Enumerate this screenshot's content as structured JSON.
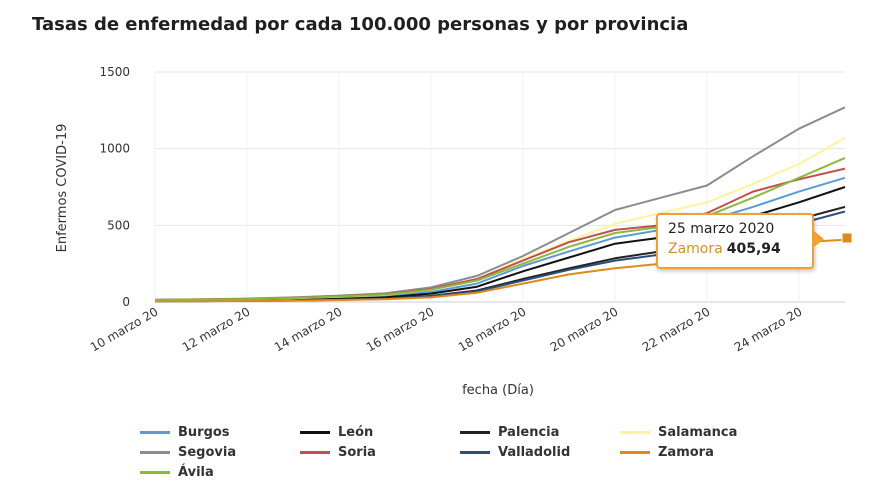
{
  "chart_data": {
    "type": "line",
    "title": "Tasas de enfermedad por cada 100.000 personas y por provincia",
    "xlabel": "fecha (Día)",
    "ylabel": "Enfermos COVID-19",
    "ylim": [
      0,
      1500
    ],
    "yticks": [
      0,
      500,
      1000,
      1500
    ],
    "x": [
      "10 marzo 20",
      "11 marzo 20",
      "12 marzo 20",
      "13 marzo 20",
      "14 marzo 20",
      "15 marzo 20",
      "16 marzo 20",
      "17 marzo 20",
      "18 marzo 20",
      "19 marzo 20",
      "20 marzo 20",
      "21 marzo 20",
      "22 marzo 20",
      "23 marzo 20",
      "24 marzo 20",
      "25 marzo 20"
    ],
    "xtick_labels": [
      "10 marzo 20",
      "12 marzo 20",
      "14 marzo 20",
      "16 marzo 20",
      "18 marzo 20",
      "20 marzo 20",
      "22 marzo 20",
      "24 marzo 20"
    ],
    "grid": true,
    "legend_position": "bottom",
    "series": [
      {
        "name": "Burgos",
        "color": "#5b9bd5",
        "values": [
          10,
          12,
          16,
          22,
          30,
          40,
          65,
          120,
          235,
          330,
          420,
          470,
          530,
          620,
          720,
          810
        ]
      },
      {
        "name": "León",
        "color": "#111111",
        "values": [
          6,
          8,
          10,
          14,
          20,
          30,
          55,
          100,
          200,
          290,
          380,
          420,
          470,
          560,
          650,
          750
        ]
      },
      {
        "name": "Palencia",
        "color": "#222222",
        "values": [
          5,
          6,
          8,
          10,
          15,
          22,
          40,
          75,
          150,
          220,
          285,
          330,
          390,
          460,
          540,
          620
        ]
      },
      {
        "name": "Salamanca",
        "color": "#fff3a0",
        "values": [
          12,
          15,
          18,
          24,
          34,
          46,
          80,
          150,
          280,
          400,
          510,
          580,
          650,
          770,
          900,
          1070
        ]
      },
      {
        "name": "Segovia",
        "color": "#8c8c8c",
        "values": [
          15,
          18,
          22,
          30,
          42,
          56,
          95,
          170,
          300,
          450,
          600,
          680,
          760,
          950,
          1130,
          1270
        ]
      },
      {
        "name": "Soria",
        "color": "#c0504d",
        "values": [
          14,
          17,
          20,
          27,
          38,
          50,
          85,
          150,
          270,
          390,
          470,
          500,
          580,
          720,
          800,
          870
        ]
      },
      {
        "name": "Valladolid",
        "color": "#2e4e7a",
        "values": [
          5,
          6,
          8,
          10,
          14,
          20,
          38,
          70,
          140,
          210,
          270,
          310,
          360,
          430,
          510,
          590
        ]
      },
      {
        "name": "Zamora",
        "color": "#e08a1e",
        "values": [
          4,
          5,
          7,
          9,
          13,
          18,
          30,
          60,
          120,
          180,
          220,
          250,
          290,
          340,
          390,
          405.94
        ]
      },
      {
        "name": "Ávila",
        "color": "#8db83c",
        "values": [
          13,
          16,
          19,
          26,
          36,
          48,
          80,
          140,
          250,
          360,
          450,
          490,
          560,
          680,
          810,
          940
        ]
      }
    ],
    "tooltip": {
      "date": "25 marzo 2020",
      "series": "Zamora",
      "value": "405,94"
    }
  }
}
